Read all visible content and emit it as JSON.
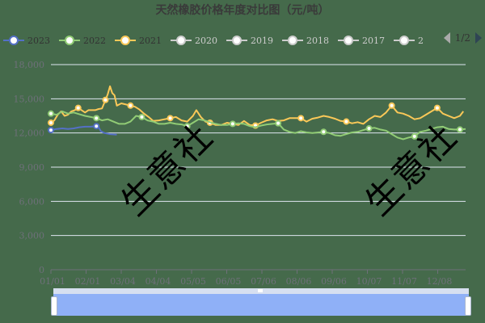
{
  "title": "天然橡胶价格年度对比图（元/吨）",
  "legend": {
    "items": [
      {
        "label": "2023",
        "color": "#5470c6",
        "active": true
      },
      {
        "label": "2022",
        "color": "#91cc75",
        "active": true
      },
      {
        "label": "2021",
        "color": "#fac858",
        "active": true
      },
      {
        "label": "2020",
        "color": "#cccccc",
        "active": false
      },
      {
        "label": "2019",
        "color": "#cccccc",
        "active": false
      },
      {
        "label": "2018",
        "color": "#cccccc",
        "active": false
      },
      {
        "label": "2017",
        "color": "#cccccc",
        "active": false
      },
      {
        "label": "2",
        "color": "#cccccc",
        "active": false
      }
    ],
    "page": "1/2"
  },
  "watermark": "生意社",
  "colors": {
    "background": "#456a4b",
    "grid": "#e0e6f1",
    "axis_label": "#6e7079",
    "slider_bg": "#d6dff0",
    "slider_fill": "#8fb0f7"
  },
  "chart_data": {
    "type": "line",
    "title": "天然橡胶价格年度对比图（元/吨）",
    "xlabel": "",
    "ylabel": "",
    "ylim": [
      0,
      18000
    ],
    "yticks": [
      "0",
      "3,000",
      "6,000",
      "9,000",
      "12,000",
      "15,000",
      "18,000"
    ],
    "xticks": [
      "01/01",
      "02/01",
      "03/04",
      "04/04",
      "05/05",
      "06/05",
      "07/06",
      "08/06",
      "09/06",
      "10/07",
      "11/07",
      "12/08"
    ],
    "grid": true,
    "legend_position": "top",
    "x_day_range": [
      0,
      365
    ],
    "series": [
      {
        "name": "2023",
        "color": "#5470c6",
        "points": [
          [
            0,
            12250
          ],
          [
            5,
            12350
          ],
          [
            10,
            12400
          ],
          [
            15,
            12350
          ],
          [
            20,
            12400
          ],
          [
            25,
            12500
          ],
          [
            30,
            12550
          ],
          [
            35,
            12550
          ],
          [
            40,
            12600
          ],
          [
            42,
            12500
          ],
          [
            44,
            12150
          ],
          [
            47,
            12000
          ],
          [
            52,
            11900
          ],
          [
            58,
            11850
          ]
        ]
      },
      {
        "name": "2022",
        "color": "#91cc75",
        "points": [
          [
            0,
            13700
          ],
          [
            5,
            13600
          ],
          [
            10,
            13900
          ],
          [
            15,
            13700
          ],
          [
            20,
            13800
          ],
          [
            25,
            13650
          ],
          [
            30,
            13500
          ],
          [
            35,
            13400
          ],
          [
            40,
            13300
          ],
          [
            45,
            13100
          ],
          [
            50,
            13200
          ],
          [
            55,
            13000
          ],
          [
            60,
            12800
          ],
          [
            65,
            12800
          ],
          [
            70,
            13000
          ],
          [
            75,
            13500
          ],
          [
            80,
            13400
          ],
          [
            85,
            13100
          ],
          [
            90,
            13000
          ],
          [
            95,
            12800
          ],
          [
            100,
            12800
          ],
          [
            105,
            12900
          ],
          [
            110,
            12800
          ],
          [
            115,
            12750
          ],
          [
            120,
            12600
          ],
          [
            125,
            12900
          ],
          [
            130,
            13200
          ],
          [
            135,
            13100
          ],
          [
            140,
            12950
          ],
          [
            145,
            12800
          ],
          [
            150,
            12700
          ],
          [
            155,
            12700
          ],
          [
            160,
            12800
          ],
          [
            165,
            12850
          ],
          [
            170,
            12800
          ],
          [
            175,
            12600
          ],
          [
            180,
            12500
          ],
          [
            185,
            12650
          ],
          [
            190,
            12750
          ],
          [
            195,
            12800
          ],
          [
            200,
            12850
          ],
          [
            205,
            12300
          ],
          [
            210,
            12100
          ],
          [
            215,
            12000
          ],
          [
            220,
            12150
          ],
          [
            225,
            12050
          ],
          [
            230,
            12000
          ],
          [
            235,
            12050
          ],
          [
            240,
            12100
          ],
          [
            245,
            12000
          ],
          [
            250,
            11800
          ],
          [
            255,
            11750
          ],
          [
            260,
            11900
          ],
          [
            265,
            12050
          ],
          [
            270,
            12100
          ],
          [
            275,
            12250
          ],
          [
            280,
            12400
          ],
          [
            285,
            12450
          ],
          [
            290,
            12300
          ],
          [
            295,
            12200
          ],
          [
            300,
            11900
          ],
          [
            305,
            11600
          ],
          [
            310,
            11450
          ],
          [
            315,
            11600
          ],
          [
            320,
            11700
          ],
          [
            325,
            12100
          ],
          [
            330,
            12200
          ],
          [
            335,
            12350
          ],
          [
            340,
            12500
          ],
          [
            345,
            12550
          ],
          [
            350,
            12350
          ],
          [
            355,
            12300
          ],
          [
            360,
            12300
          ],
          [
            365,
            12350
          ]
        ]
      },
      {
        "name": "2021",
        "color": "#fac858",
        "points": [
          [
            0,
            12900
          ],
          [
            3,
            13100
          ],
          [
            6,
            13600
          ],
          [
            9,
            13900
          ],
          [
            12,
            13500
          ],
          [
            15,
            13600
          ],
          [
            18,
            13900
          ],
          [
            21,
            14000
          ],
          [
            24,
            14200
          ],
          [
            27,
            14000
          ],
          [
            30,
            13800
          ],
          [
            33,
            14000
          ],
          [
            36,
            14000
          ],
          [
            39,
            14000
          ],
          [
            42,
            14100
          ],
          [
            45,
            14150
          ],
          [
            48,
            14900
          ],
          [
            50,
            15400
          ],
          [
            52,
            16100
          ],
          [
            54,
            15500
          ],
          [
            56,
            15300
          ],
          [
            58,
            14400
          ],
          [
            62,
            14600
          ],
          [
            66,
            14500
          ],
          [
            70,
            14400
          ],
          [
            74,
            14300
          ],
          [
            78,
            14050
          ],
          [
            82,
            13700
          ],
          [
            86,
            13400
          ],
          [
            90,
            13050
          ],
          [
            95,
            13100
          ],
          [
            100,
            13200
          ],
          [
            105,
            13300
          ],
          [
            110,
            13400
          ],
          [
            115,
            13100
          ],
          [
            120,
            13000
          ],
          [
            125,
            13500
          ],
          [
            128,
            14000
          ],
          [
            132,
            13400
          ],
          [
            136,
            13000
          ],
          [
            140,
            12900
          ],
          [
            145,
            12700
          ],
          [
            150,
            12700
          ],
          [
            155,
            12900
          ],
          [
            160,
            12800
          ],
          [
            165,
            12700
          ],
          [
            170,
            13050
          ],
          [
            175,
            12700
          ],
          [
            180,
            12650
          ],
          [
            185,
            12900
          ],
          [
            190,
            13100
          ],
          [
            195,
            13200
          ],
          [
            200,
            13050
          ],
          [
            205,
            13100
          ],
          [
            210,
            13300
          ],
          [
            215,
            13300
          ],
          [
            220,
            13300
          ],
          [
            225,
            13000
          ],
          [
            230,
            13250
          ],
          [
            235,
            13350
          ],
          [
            240,
            13500
          ],
          [
            245,
            13400
          ],
          [
            250,
            13250
          ],
          [
            255,
            13050
          ],
          [
            260,
            13000
          ],
          [
            265,
            12850
          ],
          [
            270,
            12950
          ],
          [
            275,
            12800
          ],
          [
            280,
            13200
          ],
          [
            285,
            13500
          ],
          [
            290,
            13400
          ],
          [
            295,
            13800
          ],
          [
            300,
            14400
          ],
          [
            305,
            13800
          ],
          [
            310,
            13700
          ],
          [
            315,
            13500
          ],
          [
            320,
            13200
          ],
          [
            325,
            13300
          ],
          [
            330,
            13600
          ],
          [
            335,
            13900
          ],
          [
            340,
            14200
          ],
          [
            345,
            13700
          ],
          [
            350,
            13500
          ],
          [
            355,
            13300
          ],
          [
            360,
            13500
          ],
          [
            363,
            13900
          ]
        ]
      }
    ]
  },
  "slider": {
    "start_percent": 0,
    "end_percent": 100
  }
}
